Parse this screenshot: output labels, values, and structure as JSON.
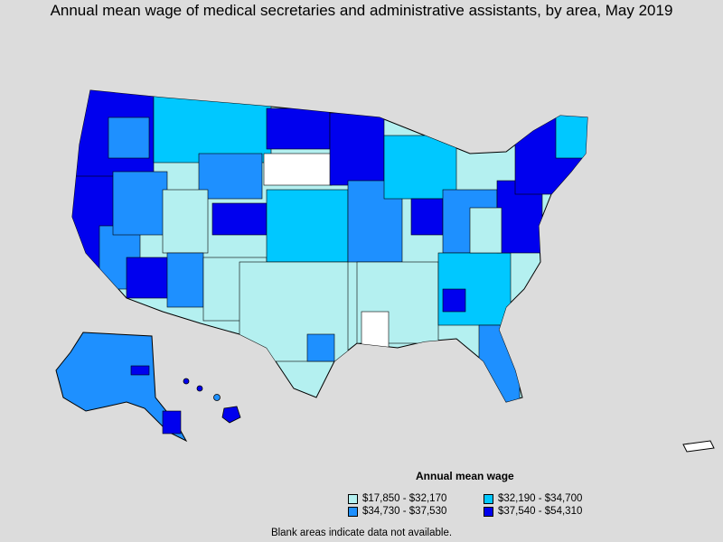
{
  "title": "Annual mean wage of medical secretaries and administrative assistants, by area, May 2019",
  "legend": {
    "title": "Annual mean wage",
    "items": [
      {
        "label": "$17,850 - $32,170",
        "color": "#b4f0f0"
      },
      {
        "label": "$32,190 - $34,700",
        "color": "#00c8ff"
      },
      {
        "label": "$34,730 - $37,530",
        "color": "#1e90ff"
      },
      {
        "label": "$37,540 - $54,310",
        "color": "#0000ee"
      }
    ]
  },
  "footnote": "Blank areas indicate data not available.",
  "colors": {
    "background": "#dcdcdc",
    "no_data": "#ffffff",
    "border": "#000000"
  }
}
